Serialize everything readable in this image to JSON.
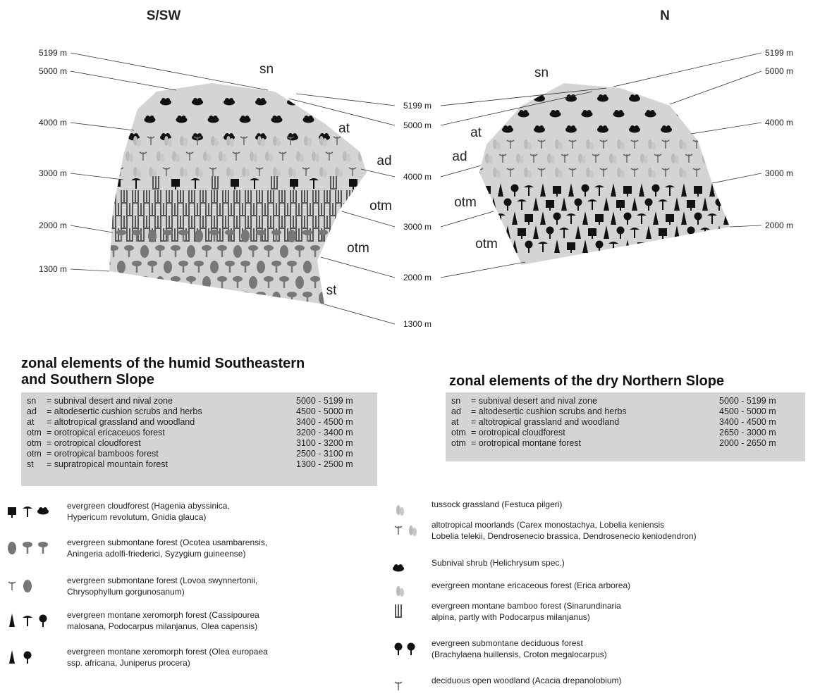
{
  "headings": {
    "left": "S/SW",
    "right": "N"
  },
  "left_altitudes": [
    "5199 m",
    "5000 m",
    "4000 m",
    "3000 m",
    "2000 m",
    "1300 m"
  ],
  "center_altitudes": [
    "5199 m",
    "5000 m",
    "4000 m",
    "3000 m",
    "2000 m",
    "1300 m"
  ],
  "right_altitudes": [
    "5199 m",
    "5000 m",
    "4000 m",
    "3000 m",
    "2000 m"
  ],
  "left_zones": [
    "sn",
    "at",
    "ad",
    "otm",
    "otm",
    "st"
  ],
  "right_zones": [
    "sn",
    "at",
    "ad",
    "otm",
    "otm"
  ],
  "left_table": {
    "title": [
      "zonal elements of the humid Southeastern",
      "and Southern Slope"
    ],
    "rows": [
      [
        "sn",
        "= subnival desert and nival zone",
        "5000 - 5199 m"
      ],
      [
        "ad",
        "= altodesertic cushion scrubs and herbs",
        "4500 - 5000 m"
      ],
      [
        "at",
        "= altotropical grassland and woodland",
        "3400 - 4500 m"
      ],
      [
        "otm",
        "= orotropical ericaceuos forest",
        "3200 - 3400 m"
      ],
      [
        "otm",
        "= orotropical cloudforest",
        "3100 - 3200 m"
      ],
      [
        "otm",
        "= orotropical bamboos forest",
        "2500 - 3100 m"
      ],
      [
        "st",
        "= supratropical mountain forest",
        "1300 - 2500 m"
      ]
    ]
  },
  "right_table": {
    "title": "zonal elements of the dry Northern Slope",
    "rows": [
      [
        "sn",
        "= subnival desert  and nival zone",
        "5000 - 5199 m"
      ],
      [
        "ad",
        "= altodesertic cushion scrubs and herbs",
        "4500 - 5000 m"
      ],
      [
        "at",
        "= altotropical grassland and woodland",
        "3400 - 4500 m"
      ],
      [
        "otm",
        "= orotropical cloudforest",
        "2650 - 3000 m"
      ],
      [
        "otm",
        "= orotropical montane forest",
        "2000 - 2650 m"
      ]
    ]
  },
  "legend_left": [
    {
      "lines": [
        "evergreen cloudforest  (Hagenia abyssinica,",
        "Hypericum revolutum, Gnidia glauca)"
      ]
    },
    {
      "lines": [
        "evergreen submontane forest  (Ocotea usambarensis,",
        "Aningeria adolfi-friederici, Syzygium guineense)"
      ]
    },
    {
      "lines": [
        "evergreen submontane forest  (Lovoa swynnertonii,",
        "Chrysophyllum gorgunosanum)"
      ]
    },
    {
      "lines": [
        "evergreen montane xeromorph forest (Cassipourea",
        "malosana, Podocarpus milanjanus, Olea capensis)"
      ]
    },
    {
      "lines": [
        "evergreen montane xeromorph forest (Olea europaea",
        "ssp. africana, Juniperus procera)"
      ]
    }
  ],
  "legend_right": [
    {
      "lines": [
        "tussock grassland (Festuca pilgeri)"
      ]
    },
    {
      "lines": [
        "altotropical moorlands (Carex monostachya, Lobelia keniensis",
        "Lobelia telekii, Dendrosenecio brassica, Dendrosenecio keniodendron)"
      ]
    },
    {
      "lines": [
        "Subnival shrub (Helichrysum spec.)"
      ]
    },
    {
      "lines": [
        "evergreen montane ericaceous forest (Erica arborea)"
      ]
    },
    {
      "lines": [
        "evergreen montane bamboo forest (Sinarundinaria",
        "alpina, partly with Podocarpus milanjanus)"
      ]
    },
    {
      "lines": [
        "evergreen submontane deciduous forest",
        "(Brachylaena huillensis, Croton megalocarpus)"
      ]
    },
    {
      "lines": [
        "deciduous open woodland (Acacia drepanolobium)"
      ]
    }
  ]
}
